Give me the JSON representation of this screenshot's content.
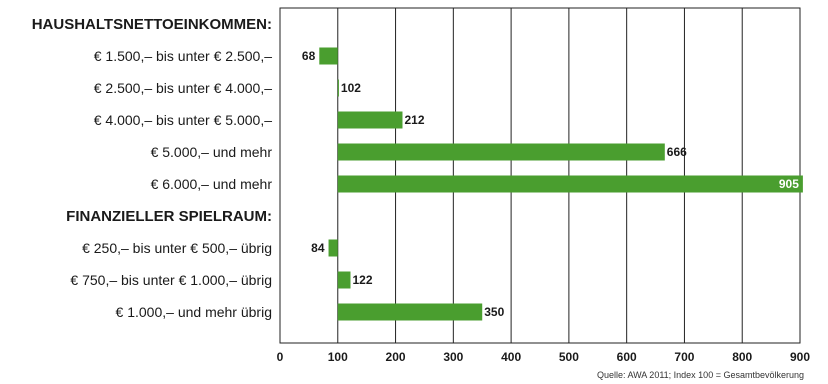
{
  "chart_data": {
    "type": "bar",
    "orientation": "horizontal",
    "baseline": 100,
    "xlim": [
      0,
      900
    ],
    "xticks": [
      "0",
      "100",
      "200",
      "300",
      "400",
      "500",
      "600",
      "700",
      "800",
      "900"
    ],
    "grid": true,
    "bar_color": "#4a9e2f",
    "groups": [
      {
        "title": "HAUSHALTSNETTOEINKOMMEN:",
        "categories": [
          "€ 1.500,– bis unter  € 2.500,–",
          "€ 2.500,– bis unter  € 4.000,–",
          "€ 4.000,– bis unter  € 5.000,–",
          "€ 5.000,– und mehr",
          "€ 6.000,– und mehr"
        ],
        "values": [
          68,
          102,
          212,
          666,
          905
        ]
      },
      {
        "title": "FINANZIELLER SPIELRAUM:",
        "categories": [
          "€ 250,– bis unter  € 500,– übrig",
          "€ 750,– bis unter  € 1.000,– übrig",
          "€  1.000,– und mehr übrig"
        ],
        "values": [
          84,
          122,
          350
        ]
      }
    ],
    "source": "Quelle: AWA 2011; Index 100 = Gesamtbevölkerung"
  }
}
